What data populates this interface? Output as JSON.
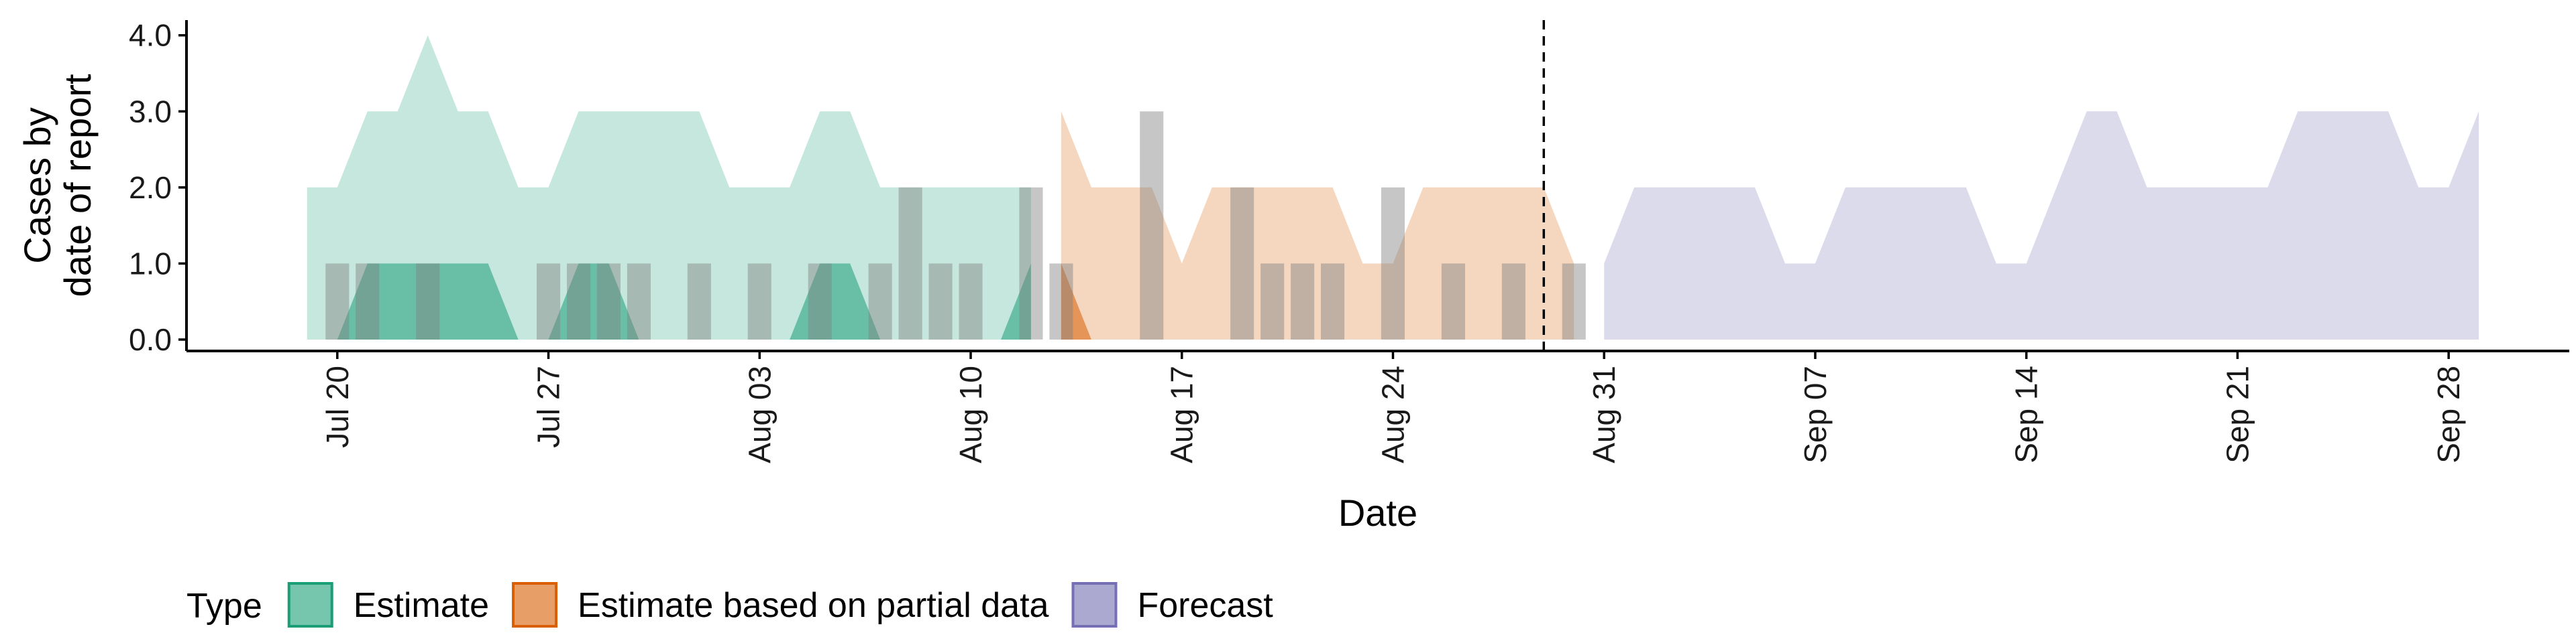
{
  "chart_data": {
    "type": "area",
    "xlabel": "Date",
    "ylabel_lines": [
      "Cases by",
      "date of report"
    ],
    "x_range": [
      "2020-07-15",
      "2020-10-02"
    ],
    "y_range": [
      -0.15,
      4.2
    ],
    "y_ticks": [
      0.0,
      1.0,
      2.0,
      3.0,
      4.0
    ],
    "y_tick_labels": [
      "0.0",
      "1.0",
      "2.0",
      "3.0",
      "4.0"
    ],
    "x_ticks": [
      "2020-07-20",
      "2020-07-27",
      "2020-08-03",
      "2020-08-10",
      "2020-08-17",
      "2020-08-24",
      "2020-08-31",
      "2020-09-07",
      "2020-09-14",
      "2020-09-21",
      "2020-09-28"
    ],
    "x_tick_labels": [
      "Jul 20",
      "Jul 27",
      "Aug 03",
      "Aug 10",
      "Aug 17",
      "Aug 24",
      "Aug 31",
      "Sep 07",
      "Sep 14",
      "Sep 21",
      "Sep 28"
    ],
    "forecast_start_line": "2020-08-29",
    "colors": {
      "Estimate": "#1b9e77",
      "Estimate based on partial data": "#d95f02",
      "Forecast": "#7570b3",
      "observed_bars": "#808080"
    },
    "outer_bands": {
      "Estimate": [
        {
          "date": "2020-07-19",
          "lower": 0,
          "upper": 2
        },
        {
          "date": "2020-07-20",
          "lower": 0,
          "upper": 2
        },
        {
          "date": "2020-07-21",
          "lower": 0,
          "upper": 3
        },
        {
          "date": "2020-07-22",
          "lower": 0,
          "upper": 3
        },
        {
          "date": "2020-07-23",
          "lower": 0,
          "upper": 4
        },
        {
          "date": "2020-07-24",
          "lower": 0,
          "upper": 3
        },
        {
          "date": "2020-07-25",
          "lower": 0,
          "upper": 3
        },
        {
          "date": "2020-07-26",
          "lower": 0,
          "upper": 2
        },
        {
          "date": "2020-07-27",
          "lower": 0,
          "upper": 2
        },
        {
          "date": "2020-07-28",
          "lower": 0,
          "upper": 3
        },
        {
          "date": "2020-07-29",
          "lower": 0,
          "upper": 3
        },
        {
          "date": "2020-07-30",
          "lower": 0,
          "upper": 3
        },
        {
          "date": "2020-07-31",
          "lower": 0,
          "upper": 3
        },
        {
          "date": "2020-08-01",
          "lower": 0,
          "upper": 3
        },
        {
          "date": "2020-08-02",
          "lower": 0,
          "upper": 2
        },
        {
          "date": "2020-08-03",
          "lower": 0,
          "upper": 2
        },
        {
          "date": "2020-08-04",
          "lower": 0,
          "upper": 2
        },
        {
          "date": "2020-08-05",
          "lower": 0,
          "upper": 3
        },
        {
          "date": "2020-08-06",
          "lower": 0,
          "upper": 3
        },
        {
          "date": "2020-08-07",
          "lower": 0,
          "upper": 2
        },
        {
          "date": "2020-08-08",
          "lower": 0,
          "upper": 2
        },
        {
          "date": "2020-08-09",
          "lower": 0,
          "upper": 2
        },
        {
          "date": "2020-08-10",
          "lower": 0,
          "upper": 2
        },
        {
          "date": "2020-08-11",
          "lower": 0,
          "upper": 2
        },
        {
          "date": "2020-08-12",
          "lower": 0,
          "upper": 2
        }
      ],
      "Estimate based on partial data": [
        {
          "date": "2020-08-13",
          "lower": 0,
          "upper": 3
        },
        {
          "date": "2020-08-14",
          "lower": 0,
          "upper": 2
        },
        {
          "date": "2020-08-15",
          "lower": 0,
          "upper": 2
        },
        {
          "date": "2020-08-16",
          "lower": 0,
          "upper": 2
        },
        {
          "date": "2020-08-17",
          "lower": 0,
          "upper": 1
        },
        {
          "date": "2020-08-18",
          "lower": 0,
          "upper": 2
        },
        {
          "date": "2020-08-19",
          "lower": 0,
          "upper": 2
        },
        {
          "date": "2020-08-20",
          "lower": 0,
          "upper": 2
        },
        {
          "date": "2020-08-21",
          "lower": 0,
          "upper": 2
        },
        {
          "date": "2020-08-22",
          "lower": 0,
          "upper": 2
        },
        {
          "date": "2020-08-23",
          "lower": 0,
          "upper": 1
        },
        {
          "date": "2020-08-24",
          "lower": 0,
          "upper": 1
        },
        {
          "date": "2020-08-25",
          "lower": 0,
          "upper": 2
        },
        {
          "date": "2020-08-26",
          "lower": 0,
          "upper": 2
        },
        {
          "date": "2020-08-27",
          "lower": 0,
          "upper": 2
        },
        {
          "date": "2020-08-28",
          "lower": 0,
          "upper": 2
        },
        {
          "date": "2020-08-29",
          "lower": 0,
          "upper": 2
        },
        {
          "date": "2020-08-30",
          "lower": 0,
          "upper": 1
        }
      ],
      "Forecast": [
        {
          "date": "2020-08-31",
          "lower": 0,
          "upper": 1
        },
        {
          "date": "2020-09-01",
          "lower": 0,
          "upper": 2
        },
        {
          "date": "2020-09-02",
          "lower": 0,
          "upper": 2
        },
        {
          "date": "2020-09-03",
          "lower": 0,
          "upper": 2
        },
        {
          "date": "2020-09-04",
          "lower": 0,
          "upper": 2
        },
        {
          "date": "2020-09-05",
          "lower": 0,
          "upper": 2
        },
        {
          "date": "2020-09-06",
          "lower": 0,
          "upper": 1
        },
        {
          "date": "2020-09-07",
          "lower": 0,
          "upper": 1
        },
        {
          "date": "2020-09-08",
          "lower": 0,
          "upper": 2
        },
        {
          "date": "2020-09-09",
          "lower": 0,
          "upper": 2
        },
        {
          "date": "2020-09-10",
          "lower": 0,
          "upper": 2
        },
        {
          "date": "2020-09-11",
          "lower": 0,
          "upper": 2
        },
        {
          "date": "2020-09-12",
          "lower": 0,
          "upper": 2
        },
        {
          "date": "2020-09-13",
          "lower": 0,
          "upper": 1
        },
        {
          "date": "2020-09-14",
          "lower": 0,
          "upper": 1
        },
        {
          "date": "2020-09-15",
          "lower": 0,
          "upper": 2
        },
        {
          "date": "2020-09-16",
          "lower": 0,
          "upper": 3
        },
        {
          "date": "2020-09-17",
          "lower": 0,
          "upper": 3
        },
        {
          "date": "2020-09-18",
          "lower": 0,
          "upper": 2
        },
        {
          "date": "2020-09-19",
          "lower": 0,
          "upper": 2
        },
        {
          "date": "2020-09-20",
          "lower": 0,
          "upper": 2
        },
        {
          "date": "2020-09-21",
          "lower": 0,
          "upper": 2
        },
        {
          "date": "2020-09-22",
          "lower": 0,
          "upper": 2
        },
        {
          "date": "2020-09-23",
          "lower": 0,
          "upper": 3
        },
        {
          "date": "2020-09-24",
          "lower": 0,
          "upper": 3
        },
        {
          "date": "2020-09-25",
          "lower": 0,
          "upper": 3
        },
        {
          "date": "2020-09-26",
          "lower": 0,
          "upper": 3
        },
        {
          "date": "2020-09-27",
          "lower": 0,
          "upper": 2
        },
        {
          "date": "2020-09-28",
          "lower": 0,
          "upper": 2
        },
        {
          "date": "2020-09-29",
          "lower": 0,
          "upper": 3
        }
      ]
    },
    "inner_bands": {
      "Estimate": [
        {
          "date": "2020-07-19",
          "lower": 0,
          "upper": 0
        },
        {
          "date": "2020-07-20",
          "lower": 0,
          "upper": 0
        },
        {
          "date": "2020-07-21",
          "lower": 0,
          "upper": 1
        },
        {
          "date": "2020-07-22",
          "lower": 0,
          "upper": 1
        },
        {
          "date": "2020-07-23",
          "lower": 0,
          "upper": 1
        },
        {
          "date": "2020-07-24",
          "lower": 0,
          "upper": 1
        },
        {
          "date": "2020-07-25",
          "lower": 0,
          "upper": 1
        },
        {
          "date": "2020-07-26",
          "lower": 0,
          "upper": 0
        },
        {
          "date": "2020-07-27",
          "lower": 0,
          "upper": 0
        },
        {
          "date": "2020-07-28",
          "lower": 0,
          "upper": 1
        },
        {
          "date": "2020-07-29",
          "lower": 0,
          "upper": 1
        },
        {
          "date": "2020-07-30",
          "lower": 0,
          "upper": 0
        },
        {
          "date": "2020-07-31",
          "lower": 0,
          "upper": 0
        },
        {
          "date": "2020-08-01",
          "lower": 0,
          "upper": 0
        },
        {
          "date": "2020-08-02",
          "lower": 0,
          "upper": 0
        },
        {
          "date": "2020-08-03",
          "lower": 0,
          "upper": 0
        },
        {
          "date": "2020-08-04",
          "lower": 0,
          "upper": 0
        },
        {
          "date": "2020-08-05",
          "lower": 0,
          "upper": 1
        },
        {
          "date": "2020-08-06",
          "lower": 0,
          "upper": 1
        },
        {
          "date": "2020-08-07",
          "lower": 0,
          "upper": 0
        },
        {
          "date": "2020-08-08",
          "lower": 0,
          "upper": 0
        },
        {
          "date": "2020-08-09",
          "lower": 0,
          "upper": 0
        },
        {
          "date": "2020-08-10",
          "lower": 0,
          "upper": 0
        },
        {
          "date": "2020-08-11",
          "lower": 0,
          "upper": 0
        },
        {
          "date": "2020-08-12",
          "lower": 0,
          "upper": 1
        }
      ],
      "Estimate based on partial data": [
        {
          "date": "2020-08-13",
          "lower": 0,
          "upper": 1
        },
        {
          "date": "2020-08-14",
          "lower": 0,
          "upper": 0
        }
      ]
    },
    "observed_bars": [
      {
        "date": "2020-07-20",
        "value": 1
      },
      {
        "date": "2020-07-21",
        "value": 1
      },
      {
        "date": "2020-07-23",
        "value": 1
      },
      {
        "date": "2020-07-27",
        "value": 1
      },
      {
        "date": "2020-07-28",
        "value": 1
      },
      {
        "date": "2020-07-29",
        "value": 1
      },
      {
        "date": "2020-07-30",
        "value": 1
      },
      {
        "date": "2020-08-01",
        "value": 1
      },
      {
        "date": "2020-08-03",
        "value": 1
      },
      {
        "date": "2020-08-05",
        "value": 1
      },
      {
        "date": "2020-08-07",
        "value": 1
      },
      {
        "date": "2020-08-08",
        "value": 2
      },
      {
        "date": "2020-08-09",
        "value": 1
      },
      {
        "date": "2020-08-10",
        "value": 1
      },
      {
        "date": "2020-08-12",
        "value": 2
      },
      {
        "date": "2020-08-13",
        "value": 1
      },
      {
        "date": "2020-08-16",
        "value": 3
      },
      {
        "date": "2020-08-19",
        "value": 2
      },
      {
        "date": "2020-08-20",
        "value": 1
      },
      {
        "date": "2020-08-21",
        "value": 1
      },
      {
        "date": "2020-08-22",
        "value": 1
      },
      {
        "date": "2020-08-24",
        "value": 2
      },
      {
        "date": "2020-08-26",
        "value": 1
      },
      {
        "date": "2020-08-28",
        "value": 1
      },
      {
        "date": "2020-08-30",
        "value": 1
      }
    ],
    "legend": {
      "title": "Type",
      "placement": "bottom",
      "entries": [
        "Estimate",
        "Estimate based on partial data",
        "Forecast"
      ]
    }
  }
}
